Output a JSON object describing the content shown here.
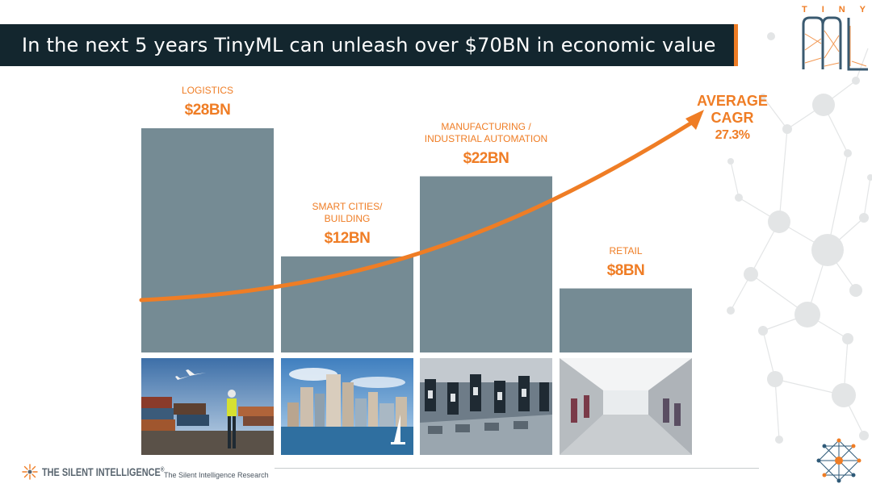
{
  "title": "In the next 5 years TinyML can unleash over $70BN in economic value",
  "logo": {
    "word": [
      "T",
      "I",
      "N",
      "Y"
    ],
    "mark": "ML"
  },
  "footer": {
    "brand": "THE SILENT INTELLIGENCE",
    "trademark": "®",
    "source": "The Silent Intelligence Research"
  },
  "cagr": {
    "line1": "AVERAGE",
    "line2": "CAGR",
    "line3": "27.3%"
  },
  "colors": {
    "accent": "#ef7d25",
    "bar": "#758b94",
    "title_bg": "#13262e"
  },
  "chart_data": {
    "type": "bar",
    "title": "In the next 5 years TinyML can unleash over $70BN in economic value",
    "unit": "BN USD",
    "categories": [
      "LOGISTICS",
      "SMART CITIES/\nBUILDING",
      "MANUFACTURING /\nINDUSTRIAL AUTOMATION",
      "RETAIL"
    ],
    "values": [
      28,
      12,
      22,
      8
    ],
    "value_labels": [
      "$28BN",
      "$12BN",
      "$22BN",
      "$8BN"
    ],
    "ylim": [
      0,
      28
    ],
    "grid": false,
    "annotation": "AVERAGE CAGR 27.3%",
    "images": [
      "logistics-photo",
      "smart-city-photo",
      "factory-photo",
      "retail-photo"
    ]
  }
}
